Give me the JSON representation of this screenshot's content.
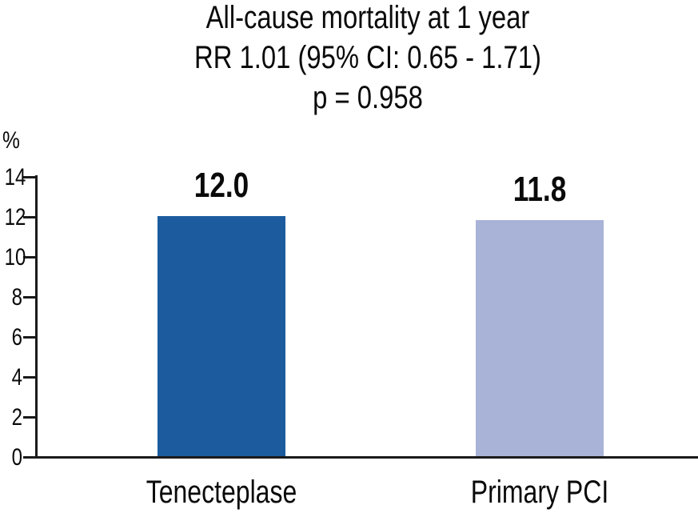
{
  "chart_data": {
    "type": "bar",
    "title_lines": [
      "All-cause mortality at 1 year",
      "RR 1.01 (95% CI: 0.65 - 1.71)",
      "p = 0.958"
    ],
    "ylabel": "%",
    "ylim": [
      0,
      14
    ],
    "yticks": [
      0,
      2,
      4,
      6,
      8,
      10,
      12,
      14
    ],
    "categories": [
      "Tenecteplase",
      "Primary PCI"
    ],
    "values": [
      12.0,
      11.8
    ],
    "value_labels": [
      "12.0",
      "11.8"
    ],
    "bar_colors": [
      "#1c5c9e",
      "#a9b3d7"
    ],
    "axis_color": "#1a1a1a",
    "grid": false,
    "legend": "none"
  }
}
